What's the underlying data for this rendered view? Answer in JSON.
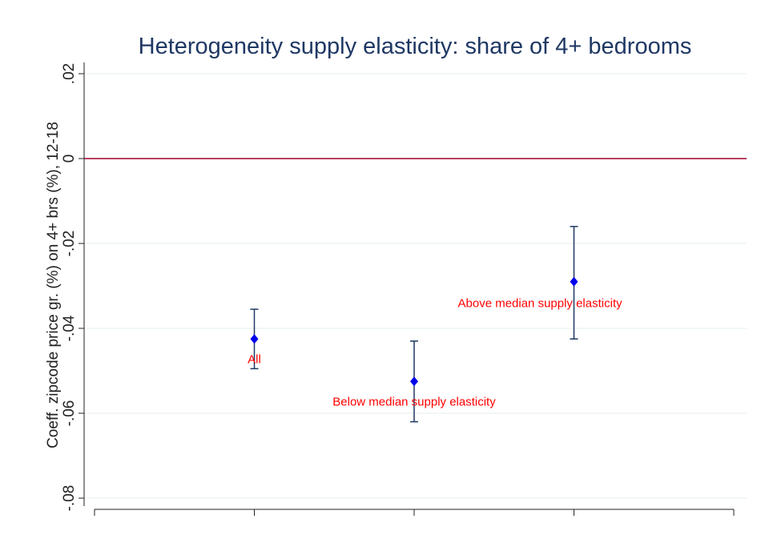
{
  "chart_data": {
    "type": "scatter",
    "title": "Heterogeneity supply elasticity: share of 4+ bedrooms",
    "xlabel": "",
    "ylabel": "Coeff. zipcode price gr. (%) on 4+ brs (%), 12-18",
    "xlim": [
      0,
      4
    ],
    "ylim": [
      -0.08,
      0.02
    ],
    "yticks": [
      0.02,
      0,
      -0.02,
      -0.04,
      -0.06,
      -0.08
    ],
    "ytick_labels": [
      ".02",
      "0",
      "-.02",
      "-.04",
      "-.06",
      "-.08"
    ],
    "xticks": [
      0,
      1,
      2,
      3,
      4
    ],
    "grid": true,
    "reference_line": {
      "y": 0,
      "color": "#a0002a"
    },
    "points": [
      {
        "x": 1,
        "y": -0.0425,
        "ci_low": -0.0495,
        "ci_high": -0.0355,
        "label": "All"
      },
      {
        "x": 2,
        "y": -0.0525,
        "ci_low": -0.062,
        "ci_high": -0.043,
        "label": "Below median supply elasticity"
      },
      {
        "x": 3,
        "y": -0.029,
        "ci_low": -0.0425,
        "ci_high": -0.016,
        "label": "Above median supply elasticity"
      }
    ],
    "colors": {
      "marker": "#0000ee",
      "errorbar": "#1f3864",
      "label": "#ff0000",
      "grid": "#e6edf2",
      "axis": "#222222"
    }
  }
}
